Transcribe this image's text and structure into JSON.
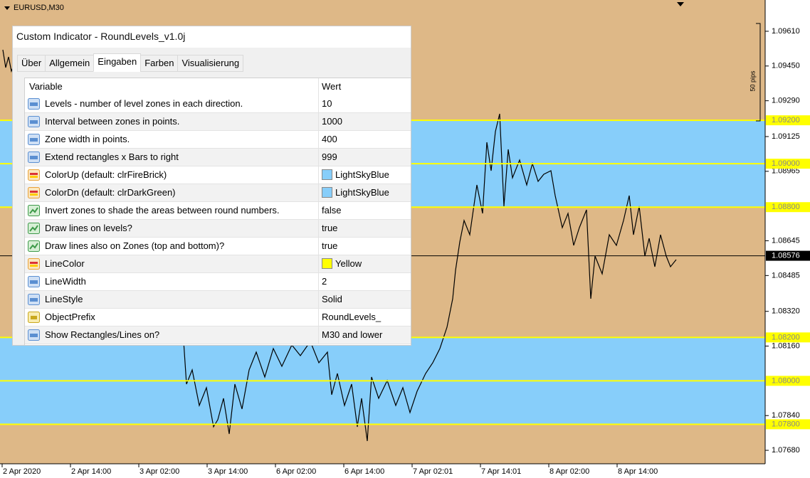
{
  "chart_header": {
    "symbol": "EURUSD,M30"
  },
  "ruler": {
    "label": "50 pips"
  },
  "price_axis": {
    "range": [
      1.07618,
      1.09754
    ],
    "labels": [
      {
        "value": 1.0961,
        "label": "1.09610"
      },
      {
        "value": 1.0945,
        "label": "1.09450"
      },
      {
        "value": 1.0929,
        "label": "1.09290"
      },
      {
        "value": 1.09125,
        "label": "1.09125"
      },
      {
        "value": 1.08965,
        "label": "1.08965"
      },
      {
        "value": 1.08645,
        "label": "1.08645"
      },
      {
        "value": 1.08485,
        "label": "1.08485"
      },
      {
        "value": 1.0832,
        "label": "1.08320"
      },
      {
        "value": 1.0816,
        "label": "1.08160"
      },
      {
        "value": 1.0784,
        "label": "1.07840"
      },
      {
        "value": 1.0768,
        "label": "1.07680"
      }
    ]
  },
  "levels": [
    {
      "value": 1.092,
      "label": "1.09200"
    },
    {
      "value": 1.09,
      "label": "1.09000"
    },
    {
      "value": 1.088,
      "label": "1.08800"
    },
    {
      "value": 1.082,
      "label": "1.08200"
    },
    {
      "value": 1.08,
      "label": "1.08000"
    },
    {
      "value": 1.078,
      "label": "1.07800"
    }
  ],
  "level_color": "#ffff00",
  "zones": [
    [
      1.088,
      1.092
    ],
    [
      1.078,
      1.082
    ]
  ],
  "zone_color": "#87cefa",
  "current_price": {
    "value": 1.08576,
    "label": "1.08576"
  },
  "time_axis": {
    "labels": [
      "2 Apr 2020",
      "2 Apr 14:00",
      "3 Apr 02:00",
      "3 Apr 14:00",
      "6 Apr 02:00",
      "6 Apr 14:00",
      "7 Apr 02:01",
      "7 Apr 14:01",
      "8 Apr 02:00",
      "8 Apr 14:00"
    ]
  },
  "dialog": {
    "title": "Custom Indicator - RoundLevels_v1.0j",
    "tabs": [
      "Über",
      "Allgemein",
      "Eingaben",
      "Farben",
      "Visualisierung"
    ],
    "active_tab": 2,
    "table": {
      "headers": [
        "Variable",
        "Wert"
      ],
      "rows": [
        {
          "icon": "int",
          "variable": "Levels - number of level zones in each direction.",
          "value": "10"
        },
        {
          "icon": "int",
          "variable": "Interval between zones in points.",
          "value": "1000"
        },
        {
          "icon": "int",
          "variable": "Zone width in points.",
          "value": "400"
        },
        {
          "icon": "int",
          "variable": "Extend rectangles x Bars to right",
          "value": "999"
        },
        {
          "icon": "color",
          "variable": "ColorUp (default: clrFireBrick)",
          "value": "LightSkyBlue",
          "swatch": "#87cefa"
        },
        {
          "icon": "color",
          "variable": "ColorDn (default: clrDarkGreen)",
          "value": "LightSkyBlue",
          "swatch": "#87cefa"
        },
        {
          "icon": "bool",
          "variable": "Invert zones to shade the areas between round numbers.",
          "value": "false"
        },
        {
          "icon": "bool",
          "variable": "Draw lines on levels?",
          "value": "true"
        },
        {
          "icon": "bool",
          "variable": "Draw lines also on Zones (top and bottom)?",
          "value": "true"
        },
        {
          "icon": "color",
          "variable": "LineColor",
          "value": "Yellow",
          "swatch": "#ffff00"
        },
        {
          "icon": "int",
          "variable": "LineWidth",
          "value": "2"
        },
        {
          "icon": "int",
          "variable": "LineStyle",
          "value": "Solid"
        },
        {
          "icon": "string",
          "variable": "ObjectPrefix",
          "value": "RoundLevels_"
        },
        {
          "icon": "int",
          "variable": "Show Rectangles/Lines on?",
          "value": "M30 and lower"
        }
      ]
    }
  }
}
